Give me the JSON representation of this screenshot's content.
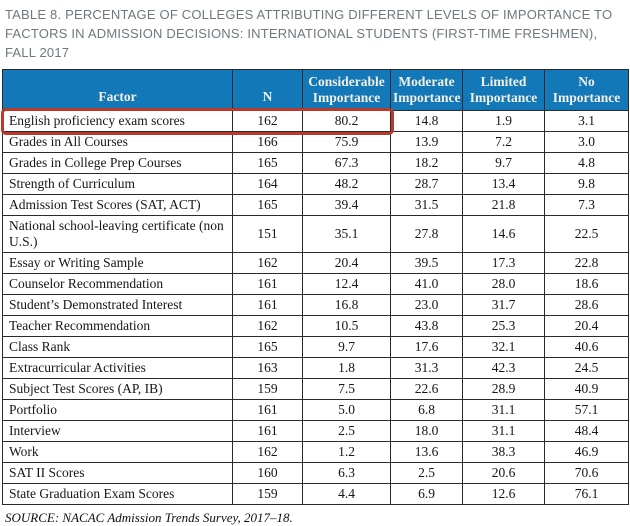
{
  "title": "TABLE 8. PERCENTAGE OF COLLEGES ATTRIBUTING DIFFERENT LEVELS OF IMPORTANCE TO FACTORS IN ADMISSION DECISIONS: INTERNATIONAL STUDENTS (FIRST-TIME FRESHMEN), FALL 2017",
  "source": "SOURCE: NACAC Admission Trends Survey, 2017–18.",
  "colors": {
    "header_bg": "#1278b8",
    "header_text": "#f3efe2",
    "highlight_border": "#b93a2c",
    "title_text": "#6e787e",
    "table_border": "#2a2a2a"
  },
  "chart_data": {
    "type": "table",
    "title": "Percentage of colleges attributing different levels of importance to factors in admission decisions: international students (first-time freshmen), Fall 2017",
    "columns": [
      "Factor",
      "N",
      "Considerable Importance",
      "Moderate Importance",
      "Limited Importance",
      "No Importance"
    ],
    "rows": [
      {
        "factor": "English proficiency exam scores",
        "n": "162",
        "considerable": "80.2",
        "moderate": "14.8",
        "limited": "1.9",
        "none": "3.1",
        "highlighted": true
      },
      {
        "factor": "Grades in All Courses",
        "n": "166",
        "considerable": "75.9",
        "moderate": "13.9",
        "limited": "7.2",
        "none": "3.0",
        "highlighted": false
      },
      {
        "factor": "Grades in College Prep Courses",
        "n": "165",
        "considerable": "67.3",
        "moderate": "18.2",
        "limited": "9.7",
        "none": "4.8",
        "highlighted": false
      },
      {
        "factor": "Strength of Curriculum",
        "n": "164",
        "considerable": "48.2",
        "moderate": "28.7",
        "limited": "13.4",
        "none": "9.8",
        "highlighted": false
      },
      {
        "factor": "Admission Test Scores (SAT, ACT)",
        "n": "165",
        "considerable": "39.4",
        "moderate": "31.5",
        "limited": "21.8",
        "none": "7.3",
        "highlighted": false
      },
      {
        "factor": "National school-leaving certificate (non U.S.)",
        "n": "151",
        "considerable": "35.1",
        "moderate": "27.8",
        "limited": "14.6",
        "none": "22.5",
        "highlighted": false
      },
      {
        "factor": "Essay or Writing Sample",
        "n": "162",
        "considerable": "20.4",
        "moderate": "39.5",
        "limited": "17.3",
        "none": "22.8",
        "highlighted": false
      },
      {
        "factor": "Counselor Recommendation",
        "n": "161",
        "considerable": "12.4",
        "moderate": "41.0",
        "limited": "28.0",
        "none": "18.6",
        "highlighted": false
      },
      {
        "factor": "Student’s Demonstrated Interest",
        "n": "161",
        "considerable": "16.8",
        "moderate": "23.0",
        "limited": "31.7",
        "none": "28.6",
        "highlighted": false
      },
      {
        "factor": "Teacher Recommendation",
        "n": "162",
        "considerable": "10.5",
        "moderate": "43.8",
        "limited": "25.3",
        "none": "20.4",
        "highlighted": false
      },
      {
        "factor": "Class Rank",
        "n": "165",
        "considerable": "9.7",
        "moderate": "17.6",
        "limited": "32.1",
        "none": "40.6",
        "highlighted": false
      },
      {
        "factor": "Extracurricular Activities",
        "n": "163",
        "considerable": "1.8",
        "moderate": "31.3",
        "limited": "42.3",
        "none": "24.5",
        "highlighted": false
      },
      {
        "factor": "Subject Test Scores (AP, IB)",
        "n": "159",
        "considerable": "7.5",
        "moderate": "22.6",
        "limited": "28.9",
        "none": "40.9",
        "highlighted": false
      },
      {
        "factor": "Portfolio",
        "n": "161",
        "considerable": "5.0",
        "moderate": "6.8",
        "limited": "31.1",
        "none": "57.1",
        "highlighted": false
      },
      {
        "factor": "Interview",
        "n": "161",
        "considerable": "2.5",
        "moderate": "18.0",
        "limited": "31.1",
        "none": "48.4",
        "highlighted": false
      },
      {
        "factor": "Work",
        "n": "162",
        "considerable": "1.2",
        "moderate": "13.6",
        "limited": "38.3",
        "none": "46.9",
        "highlighted": false
      },
      {
        "factor": "SAT II Scores",
        "n": "160",
        "considerable": "6.3",
        "moderate": "2.5",
        "limited": "20.6",
        "none": "70.6",
        "highlighted": false
      },
      {
        "factor": "State Graduation Exam Scores",
        "n": "159",
        "considerable": "4.4",
        "moderate": "6.9",
        "limited": "12.6",
        "none": "76.1",
        "highlighted": false
      }
    ]
  }
}
